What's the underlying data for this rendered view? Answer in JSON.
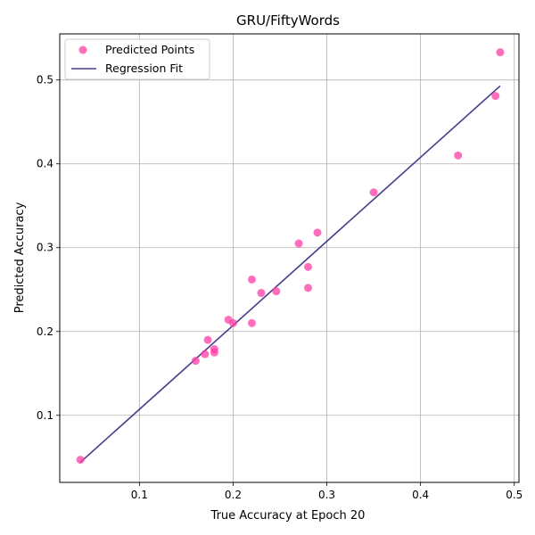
{
  "chart_data": {
    "type": "scatter",
    "title": "GRU/FiftyWords",
    "xlabel": "True Accuracy at Epoch 20",
    "ylabel": "Predicted Accuracy",
    "xlim": [
      0.015,
      0.505
    ],
    "ylim": [
      0.02,
      0.555
    ],
    "xticks": [
      0.1,
      0.2,
      0.3,
      0.4,
      0.5
    ],
    "xtick_labels": [
      "0.1",
      "0.2",
      "0.3",
      "0.4",
      "0.5"
    ],
    "yticks": [
      0.1,
      0.2,
      0.3,
      0.4,
      0.5
    ],
    "ytick_labels": [
      "0.1",
      "0.2",
      "0.3",
      "0.4",
      "0.5"
    ],
    "grid": true,
    "legend_position": "top-left",
    "series": [
      {
        "name": "Predicted Points",
        "kind": "scatter",
        "color": "#ff3ea5",
        "points": [
          {
            "x": 0.037,
            "y": 0.047
          },
          {
            "x": 0.16,
            "y": 0.165
          },
          {
            "x": 0.17,
            "y": 0.173
          },
          {
            "x": 0.173,
            "y": 0.19
          },
          {
            "x": 0.18,
            "y": 0.175
          },
          {
            "x": 0.18,
            "y": 0.179
          },
          {
            "x": 0.195,
            "y": 0.214
          },
          {
            "x": 0.2,
            "y": 0.21
          },
          {
            "x": 0.22,
            "y": 0.21
          },
          {
            "x": 0.22,
            "y": 0.262
          },
          {
            "x": 0.23,
            "y": 0.246
          },
          {
            "x": 0.246,
            "y": 0.248
          },
          {
            "x": 0.27,
            "y": 0.305
          },
          {
            "x": 0.28,
            "y": 0.252
          },
          {
            "x": 0.28,
            "y": 0.277
          },
          {
            "x": 0.29,
            "y": 0.318
          },
          {
            "x": 0.35,
            "y": 0.366
          },
          {
            "x": 0.44,
            "y": 0.41
          },
          {
            "x": 0.48,
            "y": 0.481
          },
          {
            "x": 0.485,
            "y": 0.533
          }
        ]
      },
      {
        "name": "Regression Fit",
        "kind": "line",
        "color": "#483d8b",
        "points": [
          {
            "x": 0.037,
            "y": 0.044
          },
          {
            "x": 0.485,
            "y": 0.493
          }
        ]
      }
    ]
  }
}
